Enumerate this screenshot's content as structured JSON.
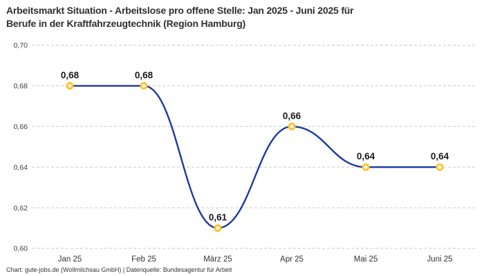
{
  "title": {
    "line1": "Arbeitsmarkt Situation - Arbeitslose pro offene Stelle: Jan 2025 - Juni 2025 für",
    "line2": "Berufe in der Kraftfahrzeugtechnik (Region Hamburg)"
  },
  "footer": {
    "text": "Chart: gute-jobs.de (Wollmilchsau GmbH) | Datenquelle: Bundesagentur für Arbeit"
  },
  "chart_data": {
    "type": "line",
    "title": "Arbeitsmarkt Situation - Arbeitslose pro offene Stelle: Jan 2025 - Juni 2025 für Berufe in der Kraftfahrzeugtechnik (Region Hamburg)",
    "categories": [
      "Jan 25",
      "Feb 25",
      "März 25",
      "Apr 25",
      "Mai 25",
      "Juni 25"
    ],
    "values": [
      0.68,
      0.68,
      0.61,
      0.66,
      0.64,
      0.64
    ],
    "value_labels": [
      "0,68",
      "0,68",
      "0,61",
      "0,66",
      "0,64",
      "0,64"
    ],
    "xlabel": "",
    "ylabel": "",
    "ylim": [
      0.6,
      0.7
    ],
    "ytick_step": 0.02,
    "ytick_labels": [
      "0,70",
      "0,68",
      "0,66",
      "0,64",
      "0,62",
      "0,60"
    ],
    "grid": "horizontal-dashed",
    "legend": "none",
    "curve": "smooth",
    "colors": {
      "line": "#1c3aa0",
      "marker_ring": "#fcc432",
      "marker_fill": "#ffffff",
      "grid": "#c9c9c9",
      "axis_text": "#3d3d3d",
      "point_label": "#1a1a1a",
      "title_text": "#2f2f2f",
      "background": "#ffffff"
    }
  }
}
